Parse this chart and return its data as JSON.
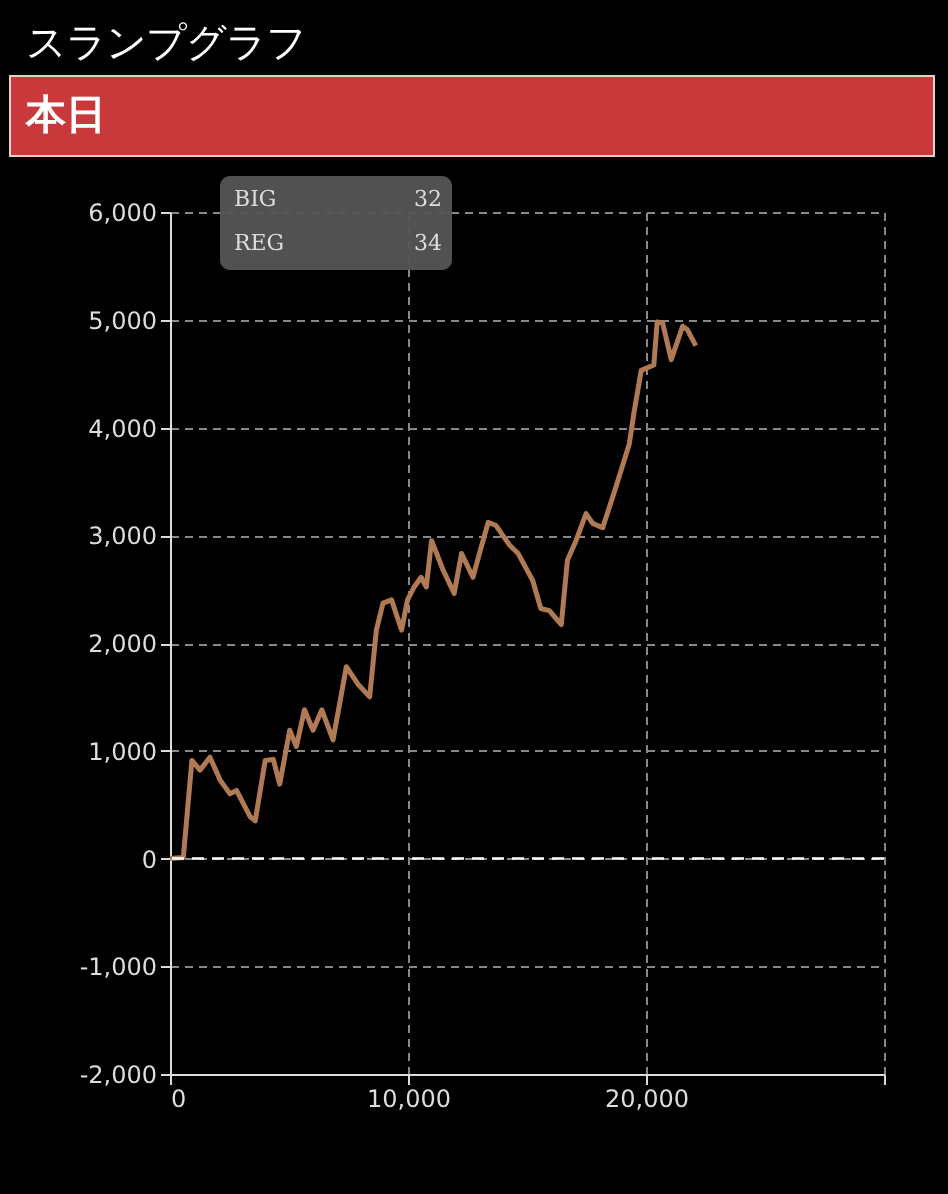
{
  "chart_data": {
    "type": "line",
    "title": "スランプグラフ",
    "subtitle": "本日",
    "annotations": [
      "BIG",
      "32",
      "REG",
      "34"
    ],
    "x": [
      0,
      560,
      920,
      1260,
      1680,
      2100,
      2520,
      2800,
      3360,
      3580,
      4000,
      4340,
      4610,
      5030,
      5310,
      5650,
      6010,
      6380,
      6850,
      7410,
      7890,
      8390,
      8670,
      8950,
      9310,
      9730,
      9980,
      10260,
      10550,
      10770,
      10990,
      11470,
      11940,
      12250,
      12730,
      13000,
      13370,
      13700,
      14260,
      14630,
      15240,
      15580,
      15940,
      16440,
      16700,
      17060,
      17480,
      17760,
      18180,
      18740,
      19300,
      19490,
      19800,
      20330,
      20470,
      20700,
      21060,
      21540,
      21730,
      22090
    ],
    "series": [
      {
        "color": "#b07a55",
        "values": [
          0,
          10,
          910,
          820,
          940,
          730,
          600,
          630,
          390,
          350,
          910,
          920,
          690,
          1190,
          1040,
          1380,
          1190,
          1380,
          1100,
          1780,
          1620,
          1500,
          2120,
          2370,
          2400,
          2120,
          2400,
          2520,
          2610,
          2520,
          2950,
          2680,
          2460,
          2830,
          2610,
          2830,
          3120,
          3090,
          2910,
          2830,
          2580,
          2320,
          2300,
          2170,
          2770,
          2950,
          3200,
          3110,
          3070,
          3450,
          3850,
          4130,
          4530,
          4580,
          4980,
          4970,
          4630,
          4940,
          4910,
          4760
        ]
      }
    ],
    "xlim": [
      0,
      30000
    ],
    "xticks": [
      0,
      {
        "value": 10000,
        "label": "10,000"
      },
      {
        "value": 20000,
        "label": "20,000"
      },
      {
        "value": 30000,
        "label": null
      }
    ],
    "ylim": [
      -2000,
      6000
    ],
    "yticks": [
      {
        "value": -2000,
        "label": "-2,000"
      },
      {
        "value": -1000,
        "label": "-1,000"
      },
      0,
      {
        "value": 1000,
        "label": "1,000"
      },
      {
        "value": 2000,
        "label": "2,000"
      },
      {
        "value": 3000,
        "label": "3,000"
      },
      {
        "value": 4000,
        "label": "4,000"
      },
      {
        "value": 5000,
        "label": "5,000"
      },
      {
        "value": 6000,
        "label": "6,000"
      }
    ],
    "ref_lines": [
      {
        "axis": "y",
        "value": 0,
        "color": "#ffffff",
        "line_style": "dashed"
      }
    ],
    "grid": true,
    "marker": "none",
    "line_style": "solid"
  }
}
